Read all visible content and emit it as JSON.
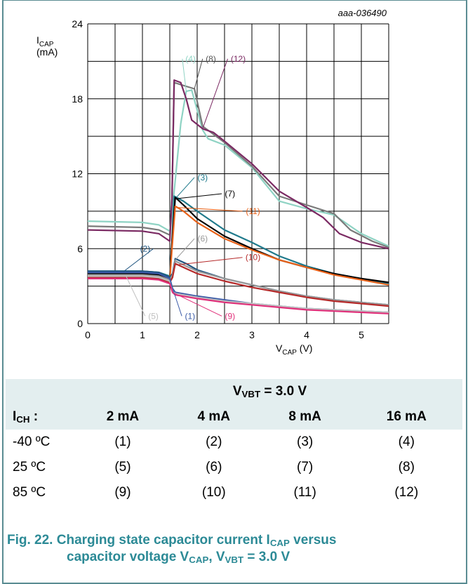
{
  "chart_data": {
    "type": "line",
    "id_label": "aaa-036490",
    "ylabel_main": "I",
    "ylabel_sub": "CAP",
    "ylabel_unit": "(mA)",
    "xlabel_main": "V",
    "xlabel_sub": "CAP",
    "xlabel_unit": " (V)",
    "xlim": [
      0,
      5.5
    ],
    "ylim": [
      0,
      24
    ],
    "x_ticks": [
      "0",
      "1",
      "2",
      "3",
      "4",
      "5"
    ],
    "y_ticks": [
      "0",
      "6",
      "12",
      "18",
      "24"
    ],
    "grid": true,
    "series": [
      {
        "name": "(4)",
        "color": "#8fd3c4",
        "points": [
          [
            0,
            8.2
          ],
          [
            1,
            8.1
          ],
          [
            1.3,
            7.9
          ],
          [
            1.5,
            7.4
          ],
          [
            1.52,
            8
          ],
          [
            1.6,
            11.5
          ],
          [
            1.7,
            16
          ],
          [
            1.8,
            18.6
          ],
          [
            1.9,
            18.7
          ],
          [
            2.1,
            15.5
          ],
          [
            2.2,
            14.8
          ],
          [
            2.5,
            14.3
          ],
          [
            3,
            12.5
          ],
          [
            3.5,
            9.8
          ],
          [
            4,
            9.2
          ],
          [
            4.5,
            8.7
          ],
          [
            5,
            7.2
          ],
          [
            5.5,
            6.2
          ]
        ]
      },
      {
        "name": "(8)",
        "color": "#7a7a7a",
        "points": [
          [
            0,
            7.8
          ],
          [
            1,
            7.7
          ],
          [
            1.3,
            7.5
          ],
          [
            1.5,
            7.1
          ],
          [
            1.54,
            10
          ],
          [
            1.58,
            19.3
          ],
          [
            1.8,
            19
          ],
          [
            1.95,
            18.8
          ],
          [
            2.1,
            15.8
          ],
          [
            2.5,
            14.5
          ],
          [
            3,
            12.6
          ],
          [
            3.5,
            10.2
          ],
          [
            4,
            9.5
          ],
          [
            4.5,
            8.8
          ],
          [
            4.8,
            7.5
          ],
          [
            5.2,
            6.6
          ],
          [
            5.5,
            6.1
          ]
        ]
      },
      {
        "name": "(12)",
        "color": "#7b2a63",
        "points": [
          [
            0,
            7.5
          ],
          [
            1,
            7.4
          ],
          [
            1.3,
            7.2
          ],
          [
            1.5,
            6.6
          ],
          [
            1.54,
            10
          ],
          [
            1.58,
            19.5
          ],
          [
            1.7,
            19.3
          ],
          [
            1.8,
            18
          ],
          [
            1.9,
            16.3
          ],
          [
            2.1,
            15.6
          ],
          [
            2.3,
            15.3
          ],
          [
            2.5,
            14.6
          ],
          [
            3,
            12.8
          ],
          [
            3.5,
            10.6
          ],
          [
            4,
            9.3
          ],
          [
            4.3,
            8.5
          ],
          [
            4.6,
            7.2
          ],
          [
            5,
            6.5
          ],
          [
            5.5,
            6
          ]
        ]
      },
      {
        "name": "(3)",
        "color": "#1f7a8c",
        "points": [
          [
            0,
            4.2
          ],
          [
            1,
            4.2
          ],
          [
            1.3,
            4.1
          ],
          [
            1.5,
            3.8
          ],
          [
            1.54,
            6.5
          ],
          [
            1.58,
            10.2
          ],
          [
            1.75,
            9.8
          ],
          [
            2,
            9
          ],
          [
            2.5,
            7.5
          ],
          [
            3,
            6.5
          ],
          [
            3.5,
            5.4
          ],
          [
            4,
            4.6
          ],
          [
            4.5,
            4
          ],
          [
            5,
            3.6
          ],
          [
            5.5,
            3.2
          ]
        ]
      },
      {
        "name": "(7)",
        "color": "#000000",
        "points": [
          [
            0,
            4
          ],
          [
            1,
            4
          ],
          [
            1.3,
            3.9
          ],
          [
            1.5,
            3.6
          ],
          [
            1.54,
            6.5
          ],
          [
            1.6,
            10.1
          ],
          [
            1.75,
            9.5
          ],
          [
            2,
            8.4
          ],
          [
            2.5,
            7
          ],
          [
            3,
            6
          ],
          [
            3.5,
            5.1
          ],
          [
            4,
            4.5
          ],
          [
            4.5,
            4
          ],
          [
            5,
            3.6
          ],
          [
            5.5,
            3.3
          ]
        ]
      },
      {
        "name": "(11)",
        "color": "#e8621a",
        "points": [
          [
            0,
            3.8
          ],
          [
            1,
            3.8
          ],
          [
            1.3,
            3.7
          ],
          [
            1.5,
            3.5
          ],
          [
            1.54,
            6
          ],
          [
            1.6,
            9.4
          ],
          [
            1.75,
            9
          ],
          [
            2,
            8.1
          ],
          [
            2.5,
            6.8
          ],
          [
            3,
            5.9
          ],
          [
            3.5,
            5.1
          ],
          [
            4,
            4.5
          ],
          [
            4.5,
            3.9
          ],
          [
            5,
            3.5
          ],
          [
            5.5,
            3.1
          ]
        ]
      },
      {
        "name": "(2)",
        "color": "#1f5580",
        "points": [
          [
            0,
            4.2
          ],
          [
            1,
            4.2
          ],
          [
            1.3,
            4.1
          ],
          [
            1.5,
            3.7
          ],
          [
            1.55,
            4
          ],
          [
            1.6,
            5.2
          ],
          [
            1.8,
            4.8
          ],
          [
            2,
            4.3
          ],
          [
            2.5,
            3.6
          ],
          [
            3,
            3.1
          ],
          [
            3.5,
            2.6
          ],
          [
            4,
            2.2
          ],
          [
            4.5,
            1.9
          ],
          [
            5,
            1.7
          ],
          [
            5.5,
            1.5
          ]
        ]
      },
      {
        "name": "(6)",
        "color": "#999999",
        "points": [
          [
            0,
            3.9
          ],
          [
            1,
            3.9
          ],
          [
            1.3,
            3.8
          ],
          [
            1.5,
            3.5
          ],
          [
            1.55,
            3.9
          ],
          [
            1.6,
            5
          ],
          [
            1.8,
            4.6
          ],
          [
            2,
            4.2
          ],
          [
            2.5,
            3.6
          ],
          [
            3,
            3.1
          ],
          [
            3.5,
            2.6
          ],
          [
            4,
            2.2
          ],
          [
            4.5,
            1.9
          ],
          [
            5,
            1.7
          ],
          [
            5.5,
            1.5
          ]
        ]
      },
      {
        "name": "(10)",
        "color": "#b52a2a",
        "points": [
          [
            0,
            3.7
          ],
          [
            1,
            3.7
          ],
          [
            1.3,
            3.6
          ],
          [
            1.5,
            3.3
          ],
          [
            1.55,
            3.7
          ],
          [
            1.6,
            4.8
          ],
          [
            1.8,
            4.4
          ],
          [
            2,
            4
          ],
          [
            2.5,
            3.4
          ],
          [
            3,
            2.9
          ],
          [
            3.5,
            2.5
          ],
          [
            4,
            2.1
          ],
          [
            4.5,
            1.8
          ],
          [
            5,
            1.6
          ],
          [
            5.5,
            1.4
          ]
        ]
      },
      {
        "name": "(1)",
        "color": "#3b5ba8",
        "points": [
          [
            0,
            4.1
          ],
          [
            1,
            4.1
          ],
          [
            1.3,
            4
          ],
          [
            1.5,
            3.6
          ],
          [
            1.55,
            2.8
          ],
          [
            1.6,
            2.5
          ],
          [
            2,
            2.2
          ],
          [
            2.5,
            1.9
          ],
          [
            3,
            1.6
          ],
          [
            3.5,
            1.4
          ],
          [
            4,
            1.2
          ],
          [
            4.5,
            1.1
          ],
          [
            5,
            1
          ],
          [
            5.5,
            0.9
          ]
        ]
      },
      {
        "name": "(5)",
        "color": "#c0c0c0",
        "points": [
          [
            0,
            3.8
          ],
          [
            1,
            3.8
          ],
          [
            1.3,
            3.7
          ],
          [
            1.5,
            3.4
          ],
          [
            1.55,
            2.6
          ],
          [
            1.6,
            2.4
          ],
          [
            2,
            2.1
          ],
          [
            2.5,
            1.8
          ],
          [
            3,
            1.6
          ],
          [
            3.5,
            1.4
          ],
          [
            4,
            1.2
          ],
          [
            4.5,
            1.1
          ],
          [
            5,
            1
          ],
          [
            5.5,
            0.9
          ]
        ]
      },
      {
        "name": "(9)",
        "color": "#e0307a",
        "points": [
          [
            0,
            3.6
          ],
          [
            1,
            3.6
          ],
          [
            1.3,
            3.5
          ],
          [
            1.5,
            3.2
          ],
          [
            1.55,
            2.5
          ],
          [
            1.6,
            2.3
          ],
          [
            2,
            2
          ],
          [
            2.5,
            1.7
          ],
          [
            3,
            1.5
          ],
          [
            3.5,
            1.3
          ],
          [
            4,
            1.1
          ],
          [
            4.5,
            1
          ],
          [
            5,
            0.9
          ],
          [
            5.5,
            0.8
          ]
        ]
      }
    ],
    "callouts": [
      {
        "text": "(4)",
        "color": "#8fd3c4",
        "at": [
          1.88,
          21.2
        ],
        "tip": [
          1.8,
          18.6
        ],
        "side": "left"
      },
      {
        "text": "(8)",
        "color": "#555555",
        "at": [
          2.25,
          21.2
        ],
        "tip": [
          1.95,
          18.8
        ],
        "side": "left"
      },
      {
        "text": "(12)",
        "color": "#7b2a63",
        "at": [
          2.75,
          21.2
        ],
        "tip": [
          2.1,
          15.6
        ],
        "side": "left"
      },
      {
        "text": "(3)",
        "color": "#1f7a8c",
        "at": [
          2.1,
          11.7
        ],
        "tip": [
          1.62,
          10.1
        ],
        "side": "left"
      },
      {
        "text": "(7)",
        "color": "#000000",
        "at": [
          2.6,
          10.4
        ],
        "tip": [
          1.62,
          10
        ],
        "side": "left"
      },
      {
        "text": "(11)",
        "color": "#e8621a",
        "at": [
          3.02,
          9
        ],
        "tip": [
          1.62,
          9.3
        ],
        "side": "left"
      },
      {
        "text": "(6)",
        "color": "#999999",
        "at": [
          2.1,
          6.8
        ],
        "tip": [
          1.58,
          5
        ],
        "side": "left"
      },
      {
        "text": "(10)",
        "color": "#b52a2a",
        "at": [
          3.02,
          5.3
        ],
        "tip": [
          1.62,
          4.7
        ],
        "side": "left"
      },
      {
        "text": "(2)",
        "color": "#1f5580",
        "at": [
          1.05,
          6
        ],
        "tip": [
          0.65,
          4.15
        ],
        "side": "right"
      },
      {
        "text": "(5)",
        "color": "#c0c0c0",
        "at": [
          1.2,
          0.6
        ],
        "tip": [
          0.7,
          3.8
        ],
        "side": "left"
      },
      {
        "text": "(1)",
        "color": "#3b5ba8",
        "at": [
          1.87,
          0.6
        ],
        "tip": [
          1.5,
          3.5
        ],
        "side": "left"
      },
      {
        "text": "(9)",
        "color": "#e0307a",
        "at": [
          2.6,
          0.6
        ],
        "tip": [
          1.55,
          2.5
        ],
        "side": "left"
      }
    ]
  },
  "table": {
    "header_main": "V",
    "header_sub": "VBT",
    "header_rest": " = 3.0 V",
    "ich_main": "I",
    "ich_sub": "CH",
    "ich_rest": " :",
    "columns": [
      "2 mA",
      "4 mA",
      "8 mA",
      "16 mA"
    ],
    "rows": [
      {
        "label": "-40 ºC",
        "cells": [
          "(1)",
          "(2)",
          "(3)",
          "(4)"
        ]
      },
      {
        "label": "25 ºC",
        "cells": [
          "(5)",
          "(6)",
          "(7)",
          "(8)"
        ]
      },
      {
        "label": "85 ºC",
        "cells": [
          "(9)",
          "(10)",
          "(11)",
          "(12)"
        ]
      }
    ]
  },
  "caption": {
    "line1_a": "Fig. 22.  Charging state capacitor current I",
    "line1_sub": "CAP",
    "line1_b": " versus",
    "line2_a": "capacitor voltage V",
    "line2_sub": "CAP",
    "line2_b": ", V",
    "line2_sub2": "VBT",
    "line2_c": " = 3.0 V"
  }
}
